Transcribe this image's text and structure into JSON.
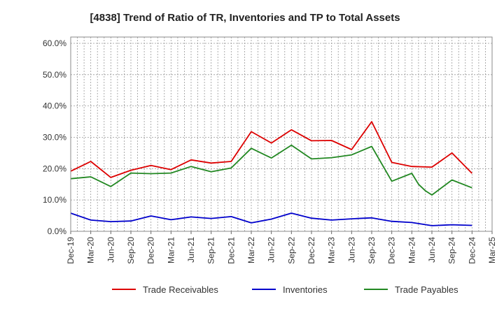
{
  "chart_data": {
    "type": "line",
    "title": "[4838]  Trend of Ratio of TR, Inventories and TP to Total Assets",
    "xlabel": "",
    "ylabel": "",
    "x_tick_labels": [
      "Dec-19",
      "Mar-20",
      "Jun-20",
      "Sep-20",
      "Dec-20",
      "Mar-21",
      "Jun-21",
      "Sep-21",
      "Dec-21",
      "Mar-22",
      "Jun-22",
      "Sep-22",
      "Dec-22",
      "Mar-23",
      "Jun-23",
      "Sep-23",
      "Dec-23",
      "Mar-24",
      "Jun-24",
      "Sep-24",
      "Dec-24",
      "Mar-25"
    ],
    "y_tick_labels": [
      "0.0%",
      "10.0%",
      "20.0%",
      "30.0%",
      "40.0%",
      "50.0%",
      "60.0%"
    ],
    "y_ticks": [
      0,
      10,
      20,
      30,
      40,
      50,
      60
    ],
    "ylim": [
      0,
      62
    ],
    "grid": true,
    "legend_position": "bottom",
    "series": [
      {
        "name": "Trade Receivables",
        "color": "#dd0000",
        "points": [
          [
            "Dec-19",
            19.2
          ],
          [
            "Mar-20",
            22.3
          ],
          [
            "Jun-20",
            17.2
          ],
          [
            "Sep-20",
            19.5
          ],
          [
            "Dec-20",
            21.0
          ],
          [
            "Mar-21",
            19.7
          ],
          [
            "Jun-21",
            22.8
          ],
          [
            "Sep-21",
            21.8
          ],
          [
            "Dec-21",
            22.3
          ],
          [
            "Mar-22",
            31.8
          ],
          [
            "Jun-22",
            28.2
          ],
          [
            "Sep-22",
            32.4
          ],
          [
            "Dec-22",
            28.9
          ],
          [
            "Mar-23",
            29.0
          ],
          [
            "Jun-23",
            26.1
          ],
          [
            "Sep-23",
            35.0
          ],
          [
            "Dec-23",
            22.0
          ],
          [
            "Mar-24",
            20.7
          ],
          [
            "Jun-24",
            20.5
          ],
          [
            "Sep-24",
            25.0
          ],
          [
            "Dec-24",
            18.5
          ]
        ]
      },
      {
        "name": "Inventories",
        "color": "#0000cc",
        "points": [
          [
            "Dec-19",
            5.8
          ],
          [
            "Mar-20",
            3.6
          ],
          [
            "Jun-20",
            3.1
          ],
          [
            "Sep-20",
            3.3
          ],
          [
            "Dec-20",
            4.9
          ],
          [
            "Mar-21",
            3.7
          ],
          [
            "Jun-21",
            4.6
          ],
          [
            "Sep-21",
            4.1
          ],
          [
            "Dec-21",
            4.7
          ],
          [
            "Mar-22",
            2.7
          ],
          [
            "Jun-22",
            3.9
          ],
          [
            "Sep-22",
            5.8
          ],
          [
            "Dec-22",
            4.2
          ],
          [
            "Mar-23",
            3.6
          ],
          [
            "Jun-23",
            4.0
          ],
          [
            "Sep-23",
            4.3
          ],
          [
            "Dec-23",
            3.2
          ],
          [
            "Mar-24",
            2.8
          ],
          [
            "Jun-24",
            1.8
          ],
          [
            "Sep-24",
            2.1
          ],
          [
            "Dec-24",
            1.9
          ]
        ]
      },
      {
        "name": "Trade Payables",
        "color": "#228822",
        "points": [
          [
            "Dec-19",
            16.8
          ],
          [
            "Mar-20",
            17.4
          ],
          [
            "Jun-20",
            14.3
          ],
          [
            "Sep-20",
            18.6
          ],
          [
            "Dec-20",
            18.4
          ],
          [
            "Mar-21",
            18.6
          ],
          [
            "Jun-21",
            20.7
          ],
          [
            "Sep-21",
            19.0
          ],
          [
            "Dec-21",
            20.2
          ],
          [
            "Mar-22",
            26.5
          ],
          [
            "Jun-22",
            23.4
          ],
          [
            "Sep-22",
            27.5
          ],
          [
            "Dec-22",
            23.1
          ],
          [
            "Mar-23",
            23.5
          ],
          [
            "Jun-23",
            24.4
          ],
          [
            "Sep-23",
            27.1
          ],
          [
            "Dec-23",
            16.0
          ],
          [
            "Mar-24",
            18.5
          ],
          [
            "Apr-24",
            15.0
          ],
          [
            "May-24",
            13.0
          ],
          [
            "Jun-24",
            11.6
          ],
          [
            "Sep-24",
            16.4
          ],
          [
            "Dec-24",
            13.9
          ]
        ]
      }
    ]
  }
}
